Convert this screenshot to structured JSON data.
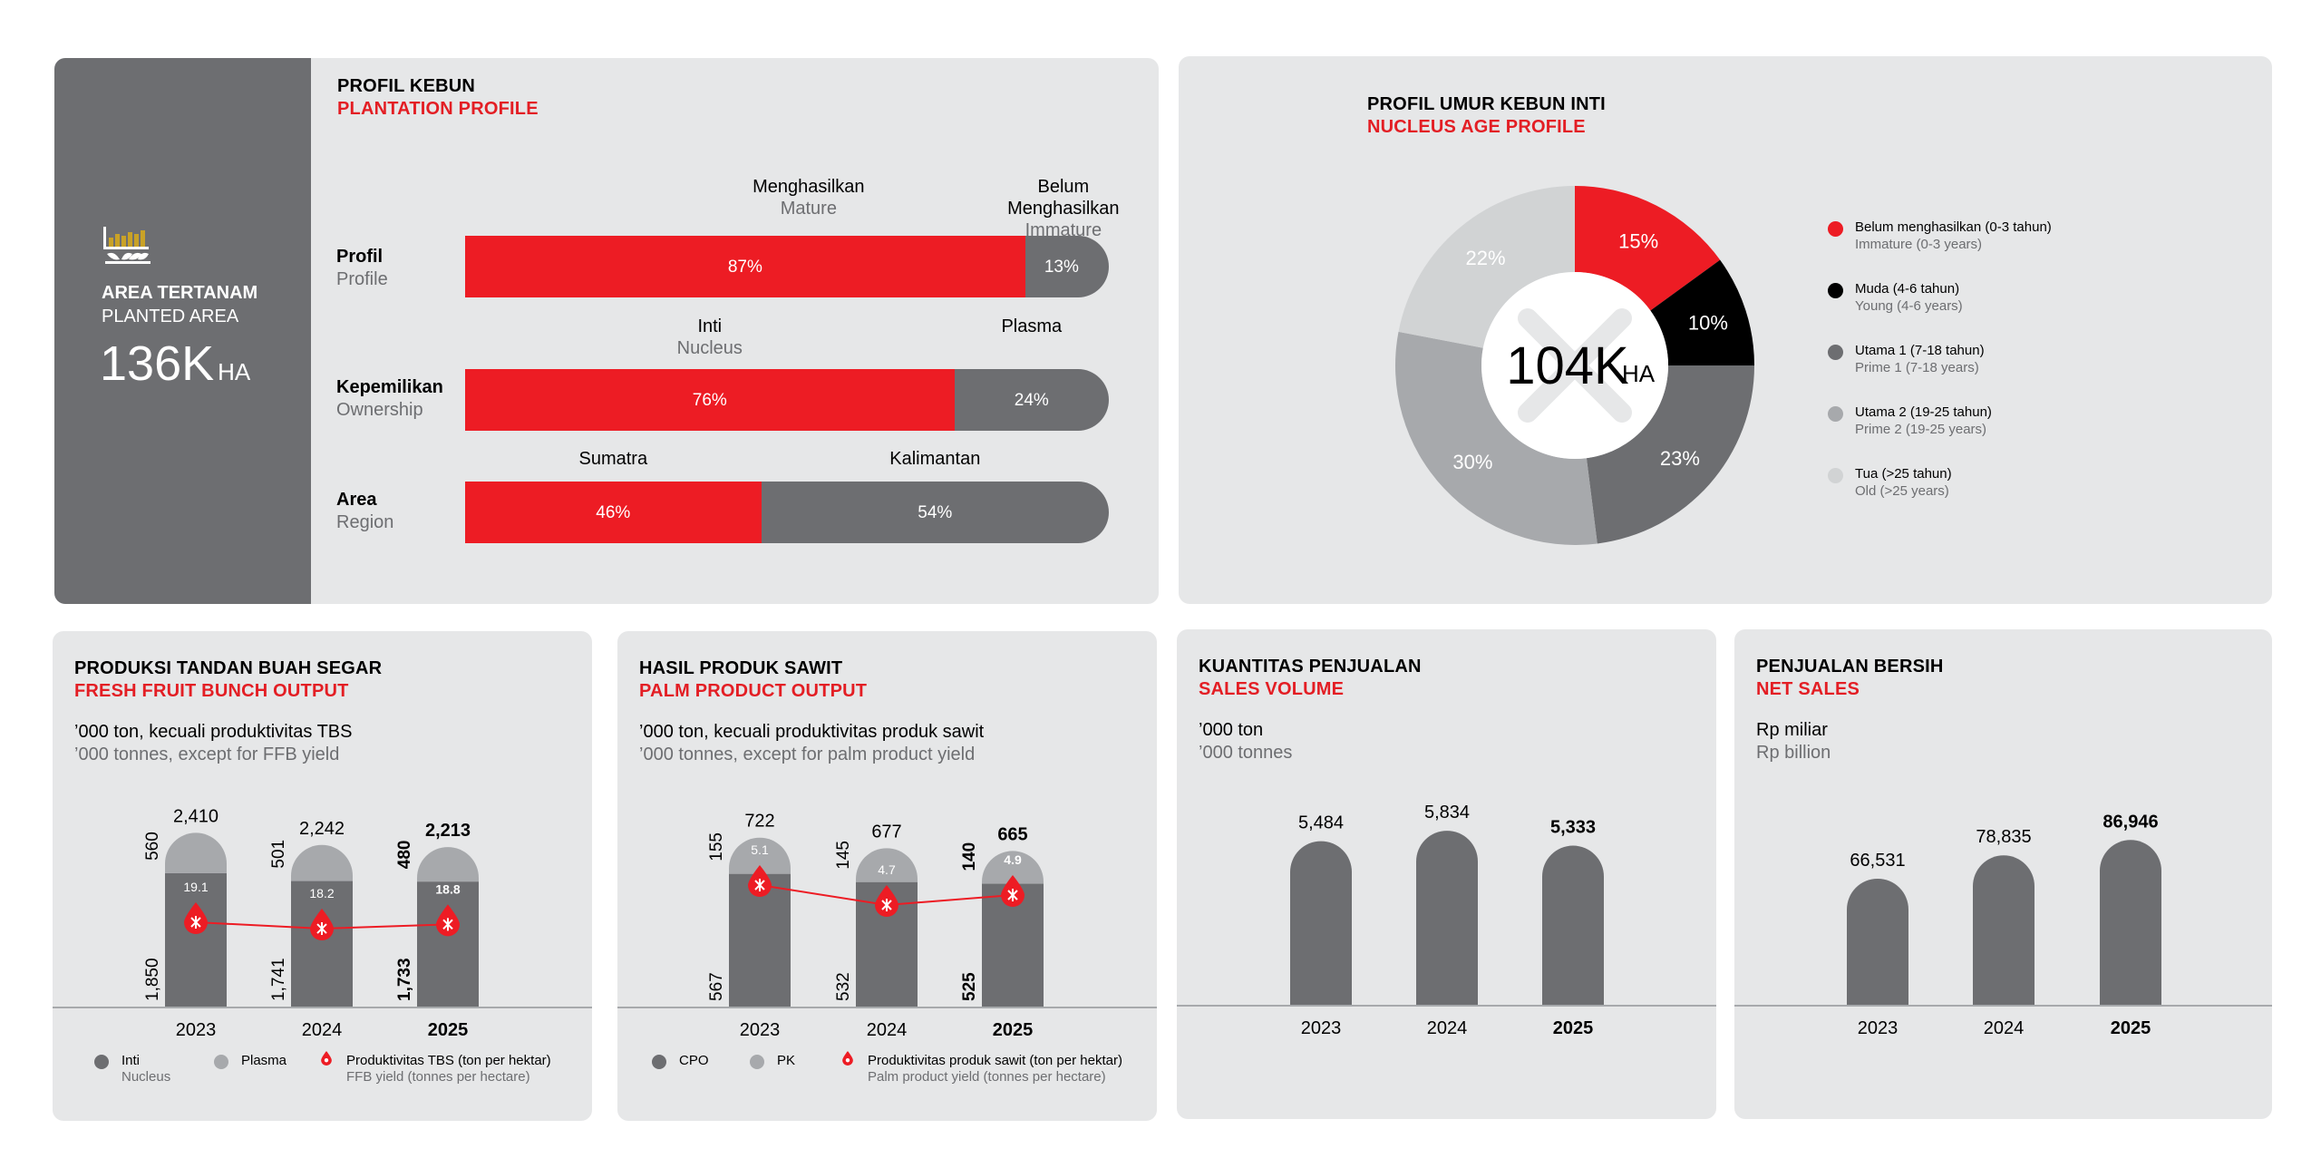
{
  "colors": {
    "red": "#ed1c24",
    "dark_gray": "#6d6e71",
    "mid_gray": "#a7a9ac",
    "light_gray": "#d1d3d4",
    "black": "#000000",
    "panel_bg": "#e6e7e8"
  },
  "plantation": {
    "title_id": "PROFIL KEBUN",
    "title_en": "PLANTATION PROFILE",
    "area": {
      "label_id": "AREA TERTANAM",
      "label_en": "PLANTED AREA",
      "value": "136K",
      "unit": "HA",
      "icon": "palm-sprout-icon"
    },
    "rows": [
      {
        "label_id": "Profil",
        "label_en": "Profile",
        "seg1_id": "Menghasilkan",
        "seg1_en": "Mature",
        "seg2_id": "Belum Menghasilkan",
        "seg2_en": "Immature",
        "seg1_pct": 87,
        "seg2_pct": 13,
        "seg1_text": "87%",
        "seg2_text": "13%"
      },
      {
        "label_id": "Kepemilikan",
        "label_en": "Ownership",
        "seg1_id": "Inti",
        "seg1_en": "Nucleus",
        "seg2_id": "Plasma",
        "seg2_en": "",
        "seg1_pct": 76,
        "seg2_pct": 24,
        "seg1_text": "76%",
        "seg2_text": "24%"
      },
      {
        "label_id": "Area",
        "label_en": "Region",
        "seg1_id": "Sumatra",
        "seg1_en": "",
        "seg2_id": "Kalimantan",
        "seg2_en": "",
        "seg1_pct": 46,
        "seg2_pct": 54,
        "seg1_text": "46%",
        "seg2_text": "54%"
      }
    ]
  },
  "nucleus_age": {
    "title_id": "PROFIL UMUR KEBUN INTI",
    "title_en": "NUCLEUS AGE PROFILE",
    "center_value": "104K",
    "center_unit": "HA",
    "legend": [
      {
        "label_id": "Belum menghasilkan (0-3 tahun)",
        "label_en": "Immature (0-3 years)"
      },
      {
        "label_id": "Muda (4-6 tahun)",
        "label_en": "Young (4-6 years)"
      },
      {
        "label_id": "Utama 1 (7-18 tahun)",
        "label_en": "Prime 1 (7-18 years)"
      },
      {
        "label_id": "Utama 2 (19-25 tahun)",
        "label_en": "Prime 2 (19-25 years)"
      },
      {
        "label_id": "Tua (>25 tahun)",
        "label_en": "Old (>25 years)"
      }
    ]
  },
  "ffb": {
    "title_id": "PRODUKSI TANDAN BUAH SEGAR",
    "title_en": "FRESH FRUIT BUNCH OUTPUT",
    "sub_id": "’000 ton, kecuali produktivitas TBS",
    "sub_en": "’000 tonnes, except for FFB yield",
    "legend": [
      {
        "label_id": "Inti",
        "label_en": "Nucleus"
      },
      {
        "label_id": "Plasma",
        "label_en": ""
      },
      {
        "label_id": "Produktivitas TBS (ton per hektar)",
        "label_en": "FFB yield (tonnes per hectare)"
      }
    ]
  },
  "palm": {
    "title_id": "HASIL PRODUK SAWIT",
    "title_en": "PALM PRODUCT OUTPUT",
    "sub_id": "’000 ton, kecuali produktivitas produk sawit",
    "sub_en": "’000 tonnes, except for palm product yield",
    "legend": [
      {
        "label_id": "CPO",
        "label_en": ""
      },
      {
        "label_id": "PK",
        "label_en": ""
      },
      {
        "label_id": "Produktivitas produk sawit (ton per hektar)",
        "label_en": "Palm product yield (tonnes per hectare)"
      }
    ]
  },
  "sales": {
    "title_id": "KUANTITAS PENJUALAN",
    "title_en": "SALES VOLUME",
    "sub_id": "’000 ton",
    "sub_en": "’000 tonnes"
  },
  "net": {
    "title_id": "PENJUALAN BERSIH",
    "title_en": "NET SALES",
    "sub_id": "Rp miliar",
    "sub_en": "Rp billion"
  },
  "chart_data": [
    {
      "type": "bar",
      "title": "PROFIL KEBUN / PLANTATION PROFILE",
      "categories": [
        "Profil / Profile",
        "Kepemilikan / Ownership",
        "Area / Region"
      ],
      "series": [
        {
          "name": "Menghasilkan / Inti / Sumatra",
          "values": [
            87,
            76,
            46
          ]
        },
        {
          "name": "Belum Menghasilkan / Plasma / Kalimantan",
          "values": [
            13,
            24,
            54
          ]
        }
      ]
    },
    {
      "type": "pie",
      "title": "PROFIL UMUR KEBUN INTI / NUCLEUS AGE PROFILE",
      "categories": [
        "Belum menghasilkan (0-3 tahun)",
        "Muda (4-6 tahun)",
        "Utama 1 (7-18 tahun)",
        "Utama 2 (19-25 tahun)",
        "Tua (>25 tahun)"
      ],
      "values": [
        15,
        10,
        23,
        30,
        22
      ],
      "labels": [
        "15%",
        "10%",
        "23%",
        "30%",
        "22%"
      ],
      "colors": [
        "#ed1c24",
        "#000000",
        "#6d6e71",
        "#a7a9ac",
        "#d1d3d4"
      ]
    },
    {
      "type": "bar",
      "title": "FRESH FRUIT BUNCH OUTPUT",
      "categories": [
        "2023",
        "2024",
        "2025"
      ],
      "series": [
        {
          "name": "Inti",
          "values": [
            1850,
            1741,
            1733
          ],
          "labels": [
            "1,850",
            "1,741",
            "1,733"
          ]
        },
        {
          "name": "Plasma",
          "values": [
            560,
            501,
            480
          ],
          "labels": [
            "560",
            "501",
            "480"
          ]
        }
      ],
      "totals": [
        2410,
        2242,
        2213
      ],
      "total_labels": [
        "2,410",
        "2,242",
        "2,213"
      ],
      "line": {
        "name": "Produktivitas TBS (ton per hektar)",
        "values": [
          19.1,
          18.2,
          18.8
        ],
        "labels": [
          "19.1",
          "18.2",
          "18.8"
        ]
      }
    },
    {
      "type": "bar",
      "title": "PALM PRODUCT OUTPUT",
      "categories": [
        "2023",
        "2024",
        "2025"
      ],
      "series": [
        {
          "name": "CPO",
          "values": [
            567,
            532,
            525
          ],
          "labels": [
            "567",
            "532",
            "525"
          ]
        },
        {
          "name": "PK",
          "values": [
            155,
            145,
            140
          ],
          "labels": [
            "155",
            "145",
            "140"
          ]
        }
      ],
      "totals": [
        722,
        677,
        665
      ],
      "total_labels": [
        "722",
        "677",
        "665"
      ],
      "line": {
        "name": "Produktivitas produk sawit (ton per hektar)",
        "values": [
          5.1,
          4.7,
          4.9
        ],
        "labels": [
          "5.1",
          "4.7",
          "4.9"
        ]
      }
    },
    {
      "type": "bar",
      "title": "SALES VOLUME",
      "categories": [
        "2023",
        "2024",
        "2025"
      ],
      "values": [
        5484,
        5834,
        5333
      ],
      "labels": [
        "5,484",
        "5,834",
        "5,333"
      ]
    },
    {
      "type": "bar",
      "title": "NET SALES",
      "categories": [
        "2023",
        "2024",
        "2025"
      ],
      "values": [
        66531,
        78835,
        86946
      ],
      "labels": [
        "66,531",
        "78,835",
        "86,946"
      ]
    }
  ]
}
